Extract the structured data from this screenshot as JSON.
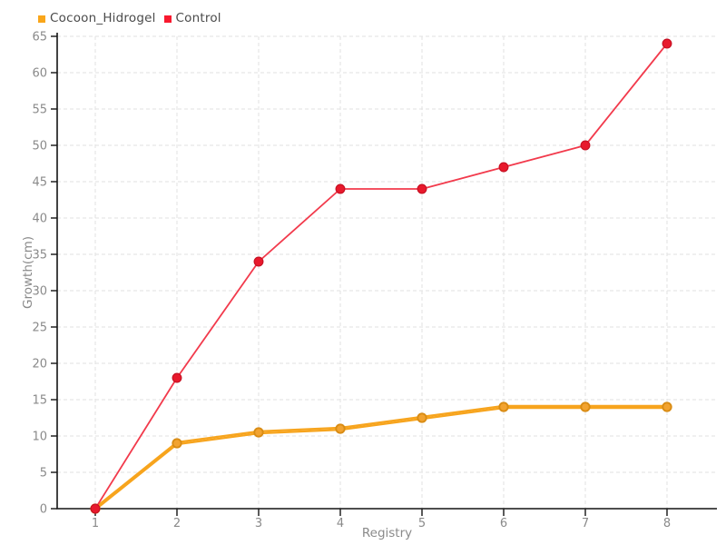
{
  "chart_data": {
    "type": "line",
    "x": [
      1,
      2,
      3,
      4,
      5,
      6,
      7,
      8
    ],
    "series": [
      {
        "name": "Cocoon_Hidrogel",
        "values": [
          0,
          9,
          10.5,
          11,
          12.5,
          14,
          14,
          14
        ],
        "line_color": "#F7A41D",
        "marker_fill": "#F2A330",
        "marker_stroke": "#D98C14",
        "legend_color": "#F9A61A",
        "line_style": "thick-double"
      },
      {
        "name": "Control",
        "values": [
          0,
          18,
          34,
          44,
          44,
          47,
          50,
          64
        ],
        "line_color": "#F23A4C",
        "marker_fill": "#E8192C",
        "marker_stroke": "#C41022",
        "legend_color": "#F8192E",
        "line_style": "thin"
      }
    ],
    "xlabel": "Registry",
    "ylabel": "Growth(cm)",
    "ylim": [
      0,
      65
    ],
    "ytick_step": 5,
    "x_tick_labels": [
      "1",
      "2",
      "3",
      "4",
      "5",
      "6",
      "7",
      "8"
    ],
    "grid": true,
    "grid_style": "dashed",
    "legend_position": "top-left"
  },
  "colors": {
    "background": "#FFFFFF",
    "grid": "#E2E2E2",
    "axis": "#141414",
    "tick_label": "#8A8A8A",
    "axis_title": "#8A8A8A",
    "legend_text": "#4A4A4A"
  }
}
